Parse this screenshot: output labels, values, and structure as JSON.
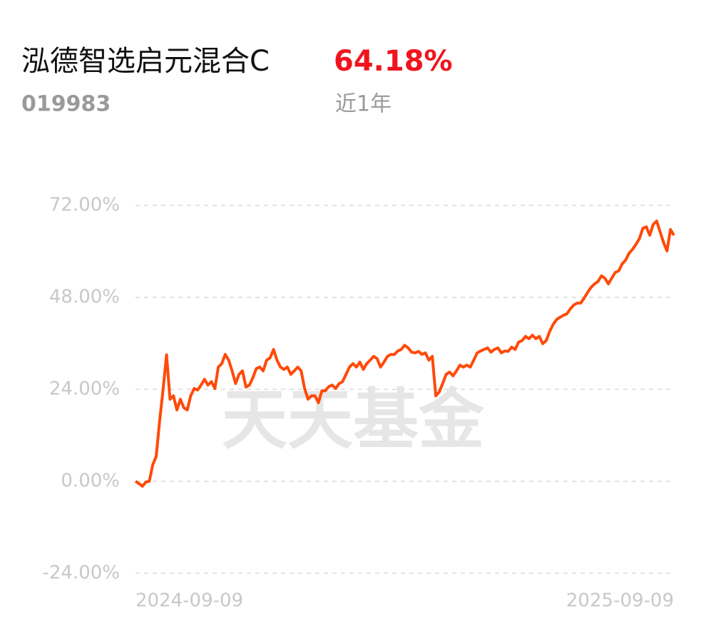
{
  "header": {
    "fund_name": "泓德智选启元混合C",
    "return": "64.18%",
    "code": "019983",
    "period": "近1年"
  },
  "watermark": "天天基金",
  "chart_data": {
    "type": "line",
    "categories": [
      "2024-09-09",
      null,
      null,
      null,
      null,
      null,
      null,
      null,
      null,
      null,
      null,
      null,
      null,
      null,
      null,
      null,
      null,
      null,
      null,
      null,
      null,
      null,
      null,
      null,
      null,
      null,
      null,
      null,
      null,
      null,
      null,
      null,
      null,
      null,
      null,
      null,
      null,
      null,
      null,
      null,
      null,
      null,
      null,
      null,
      null,
      null,
      null,
      null,
      null,
      null,
      null,
      null,
      null,
      null,
      null,
      null,
      null,
      null,
      null,
      null,
      null,
      null,
      null,
      null,
      null,
      null,
      null,
      null,
      null,
      null,
      null,
      null,
      null,
      null,
      null,
      null,
      null,
      null,
      null,
      null,
      null,
      null,
      null,
      null,
      null,
      null,
      null,
      null,
      null,
      null,
      null,
      null,
      null,
      null,
      null,
      null,
      null,
      null,
      null,
      null,
      null,
      null,
      null,
      null,
      null,
      null,
      null,
      null,
      null,
      null,
      null,
      null,
      null,
      null,
      null,
      null,
      null,
      null,
      null,
      null,
      null,
      null,
      null,
      null,
      null,
      null,
      null,
      null,
      null,
      null,
      null,
      null,
      null,
      null,
      null,
      null,
      null,
      null,
      null,
      null,
      null,
      null,
      null,
      null,
      null,
      null,
      null,
      null,
      null,
      null,
      null,
      null,
      null,
      null,
      null,
      null,
      "2025-09-09"
    ],
    "series": [
      {
        "color": "#ff4a0a",
        "values": [
          0,
          -0.6,
          -1.3,
          -0.2,
          0,
          4.3,
          6.5,
          15.8,
          24,
          33,
          21.4,
          22.3,
          18.6,
          21.4,
          19.2,
          18.6,
          22.3,
          24.2,
          23.8,
          25.1,
          26.6,
          25.1,
          26,
          24.2,
          29.8,
          30.7,
          33.1,
          31.6,
          28.8,
          25.5,
          27.9,
          28.8,
          24.6,
          25.1,
          27,
          29.4,
          29.8,
          28.8,
          31.6,
          32.2,
          34.4,
          31.6,
          29.8,
          29.2,
          29.8,
          27.9,
          28.8,
          29.8,
          28.8,
          24.2,
          21.4,
          22.3,
          22.3,
          20.5,
          23.6,
          23.6,
          24.7,
          25.1,
          24.2,
          25.5,
          26,
          27.9,
          29.8,
          30.7,
          29.8,
          31.1,
          29.2,
          30.7,
          31.6,
          32.6,
          32,
          29.8,
          31.1,
          32.6,
          33.1,
          33.1,
          34,
          34.4,
          35.5,
          34.8,
          33.7,
          33.5,
          33.9,
          33.1,
          33.5,
          31.6,
          32.6,
          22.3,
          23.3,
          25.5,
          27.9,
          28.5,
          27.5,
          28.8,
          30.3,
          29.8,
          30.3,
          29.8,
          31.6,
          33.5,
          34,
          34.4,
          34.8,
          33.7,
          34.4,
          34.8,
          33.5,
          34,
          33.9,
          35,
          34.4,
          36.3,
          36.7,
          37.8,
          37.2,
          38.1,
          37.2,
          37.8,
          35.9,
          36.7,
          39.1,
          40.9,
          42.2,
          42.8,
          43.3,
          43.7,
          45,
          46,
          46.5,
          46.5,
          47.8,
          49.3,
          50.6,
          51.5,
          52.1,
          53.6,
          53,
          51.5,
          53,
          54.5,
          54.9,
          56.7,
          57.7,
          59.5,
          60.5,
          61.8,
          63.3,
          66,
          66.4,
          64.2,
          67,
          67.9,
          65.1,
          62.3,
          60.1,
          65.7,
          64.18
        ]
      }
    ],
    "ylim": [
      -24,
      72
    ],
    "yticks": [
      {
        "value": -24,
        "label": "-24.00%"
      },
      {
        "value": 0,
        "label": "0.00%"
      },
      {
        "value": 24,
        "label": "24.00%"
      },
      {
        "value": 48,
        "label": "48.00%"
      },
      {
        "value": 72,
        "label": "72.00%"
      }
    ],
    "grid": true
  }
}
